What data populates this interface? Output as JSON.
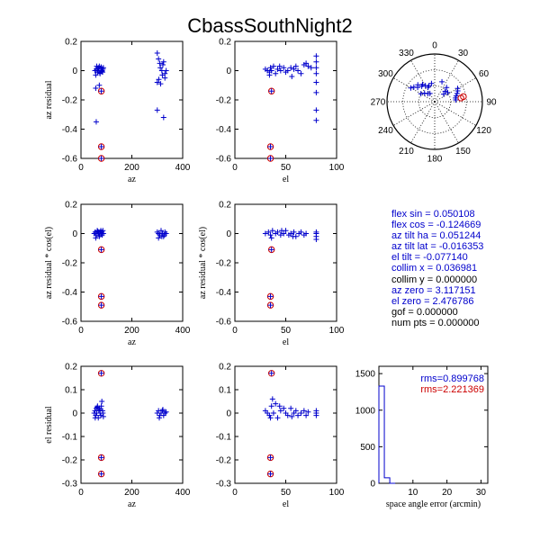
{
  "figure_title": "CbassSouthNight2",
  "chart_data": [
    {
      "id": "az-resid-vs-az",
      "type": "scatter",
      "xlabel": "az",
      "ylabel": "az residual",
      "xlim": [
        0,
        400
      ],
      "ylim": [
        -0.6,
        0.2
      ],
      "xticks": [
        0,
        200,
        400
      ],
      "yticks": [
        -0.6,
        -0.4,
        -0.2,
        0,
        0.2
      ],
      "series": [
        {
          "marker": "+",
          "color": "#0000cc",
          "x": [
            55,
            60,
            65,
            68,
            70,
            72,
            75,
            78,
            80,
            83,
            85,
            88,
            58,
            62,
            66,
            74,
            79,
            82,
            86,
            300,
            305,
            310,
            312,
            318,
            320,
            325,
            330,
            335,
            300,
            306,
            313,
            322,
            330,
            58,
            72,
            60,
            300,
            325
          ],
          "y": [
            0.0,
            0.01,
            -0.01,
            0.02,
            0.0,
            0.03,
            -0.02,
            0.01,
            0.02,
            0.0,
            -0.01,
            0.02,
            -0.03,
            0.03,
            0.01,
            -0.015,
            0.025,
            -0.005,
            0.01,
            0.12,
            0.08,
            0.05,
            0.02,
            0.0,
            -0.03,
            0.06,
            -0.05,
            0.0,
            -0.08,
            -0.06,
            -0.09,
            0.04,
            -0.02,
            -0.12,
            -0.1,
            -0.35,
            -0.27,
            -0.32
          ]
        },
        {
          "marker": "o",
          "color": "#cc0000",
          "x": [
            80,
            80,
            80
          ],
          "y": [
            -0.14,
            -0.52,
            -0.6
          ]
        },
        {
          "marker": "+",
          "color": "#0000cc",
          "x": [
            80,
            80,
            80
          ],
          "y": [
            -0.14,
            -0.52,
            -0.6
          ]
        }
      ]
    },
    {
      "id": "az-resid-vs-el",
      "type": "scatter",
      "xlabel": "el",
      "ylabel": "",
      "xlim": [
        0,
        100
      ],
      "ylim": [
        -0.6,
        0.2
      ],
      "xticks": [
        0,
        50,
        100
      ],
      "yticks": [
        -0.6,
        -0.4,
        -0.2,
        0,
        0.2
      ],
      "series": [
        {
          "marker": "+",
          "color": "#0000cc",
          "x": [
            30,
            32,
            34,
            35,
            36,
            38,
            40,
            42,
            45,
            48,
            50,
            52,
            55,
            58,
            60,
            62,
            65,
            68,
            70,
            72,
            75,
            80,
            80,
            80,
            80,
            80,
            80,
            80,
            80,
            34,
            44,
            56
          ],
          "y": [
            0.01,
            0.0,
            -0.01,
            0.02,
            0.0,
            0.03,
            -0.02,
            0.01,
            0.0,
            0.02,
            -0.01,
            0.0,
            0.02,
            0.01,
            0.03,
            0.0,
            -0.02,
            0.04,
            0.05,
            0.03,
            0.02,
            0.1,
            0.06,
            0.02,
            -0.02,
            -0.08,
            -0.15,
            -0.27,
            -0.34,
            -0.03,
            0.03,
            -0.04
          ]
        },
        {
          "marker": "o",
          "color": "#cc0000",
          "x": [
            36,
            35,
            35
          ],
          "y": [
            -0.14,
            -0.52,
            -0.6
          ]
        },
        {
          "marker": "+",
          "color": "#0000cc",
          "x": [
            36,
            35,
            35
          ],
          "y": [
            -0.14,
            -0.52,
            -0.6
          ]
        }
      ]
    },
    {
      "id": "polar-az-el",
      "type": "scatter",
      "polar": true,
      "angle_ticks": [
        "0",
        "30",
        "60",
        "90",
        "120",
        "150",
        "180",
        "210",
        "240",
        "270",
        "300",
        "330"
      ],
      "el_rings": [
        0,
        30,
        60
      ],
      "series": [
        {
          "marker": "+",
          "color": "#0000cc",
          "az": [
            300,
            305,
            310,
            315,
            320,
            325,
            330,
            335,
            340,
            350,
            20,
            40,
            55,
            60,
            65,
            70,
            75,
            80,
            85,
            300,
            310,
            320,
            330,
            45,
            50
          ],
          "el": [
            38,
            42,
            48,
            45,
            52,
            50,
            55,
            60,
            58,
            55,
            50,
            55,
            60,
            40,
            42,
            45,
            48,
            50,
            50,
            60,
            65,
            70,
            72,
            62,
            68
          ]
        },
        {
          "marker": "o",
          "color": "#cc0000",
          "az": [
            80,
            82
          ],
          "el": [
            35,
            40
          ]
        }
      ]
    },
    {
      "id": "az-resid-cos-vs-az",
      "type": "scatter",
      "xlabel": "az",
      "ylabel": "az residual * cos(el)",
      "xlim": [
        0,
        400
      ],
      "ylim": [
        -0.6,
        0.2
      ],
      "xticks": [
        0,
        200,
        400
      ],
      "yticks": [
        -0.6,
        -0.4,
        -0.2,
        0,
        0.2
      ],
      "series": [
        {
          "marker": "+",
          "color": "#0000cc",
          "x": [
            52,
            56,
            60,
            64,
            68,
            70,
            72,
            75,
            78,
            80,
            83,
            86,
            88,
            58,
            66,
            74,
            82,
            300,
            305,
            310,
            315,
            320,
            325,
            330,
            335,
            305,
            318,
            328
          ],
          "y": [
            0.0,
            0.01,
            -0.01,
            0.02,
            0.0,
            0.01,
            -0.02,
            0.01,
            0.02,
            0.0,
            -0.01,
            0.02,
            0.0,
            -0.03,
            0.015,
            -0.01,
            0.01,
            0.01,
            0.0,
            -0.01,
            0.02,
            0.0,
            -0.02,
            0.01,
            0.0,
            -0.03,
            -0.02,
            -0.01
          ]
        },
        {
          "marker": "o",
          "color": "#cc0000",
          "x": [
            80,
            80,
            80
          ],
          "y": [
            -0.11,
            -0.43,
            -0.49
          ]
        },
        {
          "marker": "+",
          "color": "#0000cc",
          "x": [
            80,
            80,
            80
          ],
          "y": [
            -0.11,
            -0.43,
            -0.49
          ]
        }
      ]
    },
    {
      "id": "az-resid-cos-vs-el",
      "type": "scatter",
      "xlabel": "el",
      "ylabel": "az residual * cos(el)",
      "xlim": [
        0,
        100
      ],
      "ylim": [
        -0.6,
        0.2
      ],
      "xticks": [
        0,
        50,
        100
      ],
      "yticks": [
        -0.6,
        -0.4,
        -0.2,
        0,
        0.2
      ],
      "series": [
        {
          "marker": "+",
          "color": "#0000cc",
          "x": [
            30,
            33,
            35,
            37,
            40,
            42,
            45,
            48,
            50,
            53,
            55,
            58,
            60,
            63,
            65,
            68,
            70,
            80,
            80,
            80,
            80,
            36,
            46,
            57
          ],
          "y": [
            0.0,
            0.01,
            -0.01,
            0.02,
            0.0,
            0.01,
            -0.01,
            0.0,
            0.02,
            -0.01,
            0.0,
            0.01,
            -0.02,
            0.0,
            0.01,
            -0.01,
            0.0,
            0.01,
            0.0,
            -0.02,
            -0.04,
            -0.03,
            0.02,
            -0.02
          ]
        },
        {
          "marker": "o",
          "color": "#cc0000",
          "x": [
            36,
            35,
            35
          ],
          "y": [
            -0.11,
            -0.43,
            -0.49
          ]
        },
        {
          "marker": "+",
          "color": "#0000cc",
          "x": [
            36,
            35,
            35
          ],
          "y": [
            -0.11,
            -0.43,
            -0.49
          ]
        }
      ]
    },
    {
      "id": "el-resid-vs-az",
      "type": "scatter",
      "xlabel": "az",
      "ylabel": "el residual",
      "xlim": [
        0,
        400
      ],
      "ylim": [
        -0.3,
        0.2
      ],
      "xticks": [
        0,
        200,
        400
      ],
      "yticks": [
        -0.3,
        -0.2,
        -0.1,
        0,
        0.1,
        0.2
      ],
      "series": [
        {
          "marker": "+",
          "color": "#0000cc",
          "x": [
            52,
            55,
            58,
            60,
            62,
            65,
            68,
            70,
            72,
            75,
            78,
            80,
            82,
            85,
            88,
            56,
            64,
            74,
            86,
            300,
            305,
            310,
            315,
            320,
            325,
            330,
            335,
            308,
            322
          ],
          "y": [
            0.0,
            0.01,
            -0.01,
            0.02,
            0.0,
            0.03,
            -0.02,
            0.01,
            0.02,
            0.0,
            -0.01,
            0.03,
            0.05,
            0.01,
            -0.015,
            -0.02,
            0.025,
            0.015,
            0.0,
            0.0,
            0.01,
            -0.01,
            0.0,
            0.01,
            -0.01,
            0.0,
            0.005,
            -0.02,
            0.015
          ]
        },
        {
          "marker": "o",
          "color": "#cc0000",
          "x": [
            80,
            80,
            80
          ],
          "y": [
            0.17,
            -0.19,
            -0.26
          ]
        },
        {
          "marker": "+",
          "color": "#0000cc",
          "x": [
            80,
            80,
            80
          ],
          "y": [
            0.17,
            -0.19,
            -0.26
          ]
        }
      ]
    },
    {
      "id": "el-resid-vs-el",
      "type": "scatter",
      "xlabel": "el",
      "ylabel": "",
      "xlim": [
        0,
        100
      ],
      "ylim": [
        -0.3,
        0.2
      ],
      "xticks": [
        0,
        50,
        100
      ],
      "yticks": [
        -0.3,
        -0.2,
        -0.1,
        0,
        0.1,
        0.2
      ],
      "series": [
        {
          "marker": "+",
          "color": "#0000cc",
          "x": [
            30,
            32,
            34,
            36,
            38,
            40,
            42,
            45,
            48,
            50,
            52,
            55,
            58,
            60,
            62,
            65,
            68,
            70,
            72,
            80,
            80,
            80,
            35,
            44,
            56,
            37
          ],
          "y": [
            0.01,
            0.0,
            -0.01,
            0.03,
            0.0,
            0.04,
            -0.02,
            0.01,
            0.02,
            0.0,
            -0.01,
            0.02,
            0.0,
            0.01,
            -0.01,
            0.0,
            0.01,
            -0.01,
            0.005,
            0.01,
            0.0,
            -0.01,
            -0.02,
            0.03,
            -0.015,
            0.06
          ]
        },
        {
          "marker": "o",
          "color": "#cc0000",
          "x": [
            36,
            35,
            35
          ],
          "y": [
            0.17,
            -0.19,
            -0.26
          ]
        },
        {
          "marker": "+",
          "color": "#0000cc",
          "x": [
            36,
            35,
            35
          ],
          "y": [
            0.17,
            -0.19,
            -0.26
          ]
        }
      ]
    },
    {
      "id": "space-angle-histogram",
      "type": "bar",
      "xlabel": "space angle error (arcmin)",
      "ylabel": "",
      "xlim": [
        0,
        32
      ],
      "ylim": [
        0,
        1600
      ],
      "xticks": [
        10,
        20,
        30
      ],
      "yticks": [
        0,
        500,
        1000,
        1500
      ],
      "bins": [
        [
          0,
          1.6,
          1330
        ],
        [
          1.6,
          3.2,
          75
        ],
        [
          3.2,
          4.8,
          0
        ]
      ],
      "annotations": [
        {
          "text": "rms=0.899768",
          "color": "#0000cc"
        },
        {
          "text": "rms=2.221369",
          "color": "#cc0000"
        }
      ]
    }
  ],
  "parameters": [
    {
      "text": "flex sin = 0.050108",
      "color": "#0000cc"
    },
    {
      "text": "flex cos = -0.124669",
      "color": "#0000cc"
    },
    {
      "text": "az tilt ha = 0.051244",
      "color": "#0000cc"
    },
    {
      "text": "az tilt lat = -0.016353",
      "color": "#0000cc"
    },
    {
      "text": "el tilt = -0.077140",
      "color": "#0000cc"
    },
    {
      "text": "collim x = 0.036981",
      "color": "#0000cc"
    },
    {
      "text": "collim y = 0.000000",
      "color": "#000000"
    },
    {
      "text": "az zero = 3.117151",
      "color": "#0000cc"
    },
    {
      "text": "el zero = 2.476786",
      "color": "#0000cc"
    },
    {
      "text": "gof = 0.000000",
      "color": "#000000"
    },
    {
      "text": "num pts = 0.000000",
      "color": "#000000"
    }
  ]
}
